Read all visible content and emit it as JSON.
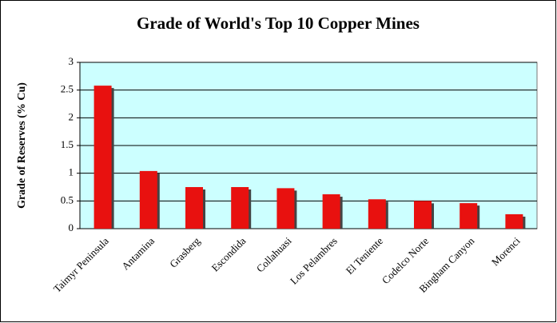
{
  "chart_data": {
    "type": "bar",
    "title": "Grade of World's Top 10 Copper Mines",
    "y_label": "Grade of Reserves (% Cu)",
    "categories": [
      "Taimyr Peninsula",
      "Antamina",
      "Grasberg",
      "Escondida",
      "Collahuasi",
      "Los Pelambres",
      "El Teniente",
      "Codelco Norte",
      "Bingham Canyon",
      "Morenci"
    ],
    "values": [
      2.58,
      1.04,
      0.75,
      0.75,
      0.73,
      0.62,
      0.53,
      0.5,
      0.46,
      0.26
    ],
    "color": "#e8110f",
    "ylim": [
      0,
      3
    ],
    "yticks": [
      0,
      0.5,
      1,
      1.5,
      2,
      2.5,
      3
    ],
    "grid": true
  }
}
